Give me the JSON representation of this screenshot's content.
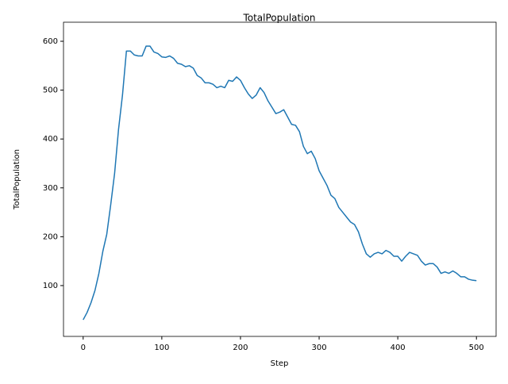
{
  "chart_data": {
    "type": "line",
    "title": "TotalPopulation",
    "xlabel": "Step",
    "ylabel": "TotalPopulation",
    "color": "#1f77b4",
    "x": [
      0,
      5,
      10,
      15,
      20,
      25,
      30,
      35,
      40,
      45,
      50,
      55,
      60,
      65,
      70,
      75,
      80,
      85,
      90,
      95,
      100,
      105,
      110,
      115,
      120,
      125,
      130,
      135,
      140,
      145,
      150,
      155,
      160,
      165,
      170,
      175,
      180,
      185,
      190,
      195,
      200,
      205,
      210,
      215,
      220,
      225,
      230,
      235,
      240,
      245,
      250,
      255,
      260,
      265,
      270,
      275,
      280,
      285,
      290,
      295,
      300,
      305,
      310,
      315,
      320,
      325,
      330,
      335,
      340,
      345,
      350,
      355,
      360,
      365,
      370,
      375,
      380,
      385,
      390,
      395,
      400,
      405,
      410,
      415,
      420,
      425,
      430,
      435,
      440,
      445,
      450,
      455,
      460,
      465,
      470,
      475,
      480,
      485,
      490,
      495,
      500
    ],
    "values": [
      30,
      45,
      65,
      90,
      125,
      170,
      205,
      265,
      330,
      420,
      490,
      580,
      580,
      572,
      570,
      570,
      590,
      590,
      578,
      575,
      568,
      567,
      570,
      565,
      555,
      553,
      548,
      550,
      545,
      530,
      525,
      515,
      515,
      512,
      505,
      508,
      505,
      520,
      518,
      527,
      520,
      505,
      492,
      483,
      490,
      505,
      495,
      478,
      465,
      452,
      455,
      460,
      445,
      430,
      428,
      415,
      385,
      370,
      375,
      360,
      335,
      320,
      305,
      285,
      278,
      260,
      250,
      240,
      230,
      225,
      210,
      185,
      165,
      158,
      165,
      168,
      165,
      172,
      168,
      160,
      160,
      150,
      160,
      168,
      165,
      162,
      150,
      142,
      145,
      145,
      138,
      125,
      128,
      125,
      130,
      125,
      118,
      118,
      113,
      111,
      110
    ],
    "xlim": [
      -25,
      525
    ],
    "ylim": [
      -4,
      639
    ],
    "xticks": [
      0,
      100,
      200,
      300,
      400,
      500
    ],
    "yticks": [
      100,
      200,
      300,
      400,
      500,
      600
    ]
  }
}
